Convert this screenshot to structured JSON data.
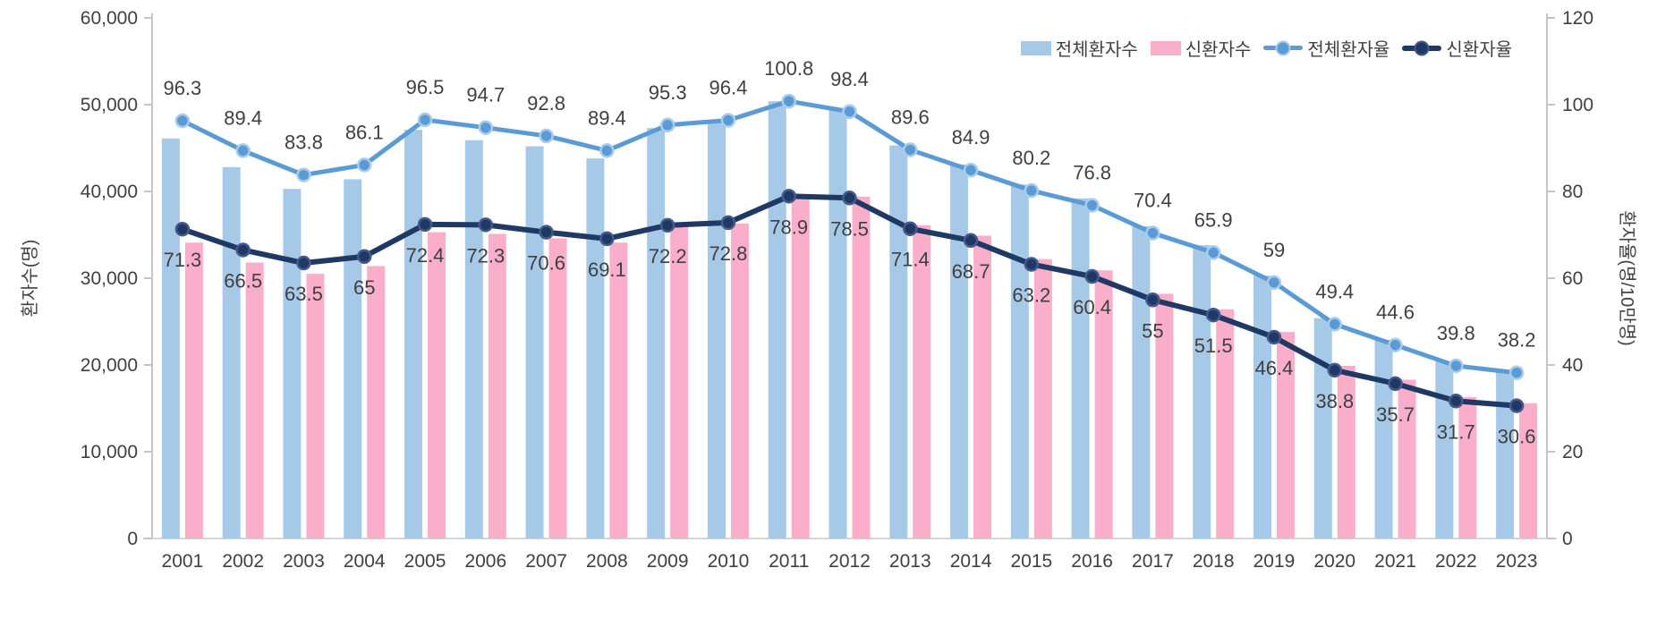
{
  "chart_data": {
    "type": "combo",
    "title": "",
    "categories": [
      "2001",
      "2002",
      "2003",
      "2004",
      "2005",
      "2006",
      "2007",
      "2008",
      "2009",
      "2010",
      "2011",
      "2012",
      "2013",
      "2014",
      "2015",
      "2016",
      "2017",
      "2018",
      "2019",
      "2020",
      "2021",
      "2022",
      "2023"
    ],
    "series": [
      {
        "name": "전체환자수",
        "type": "bar",
        "axis": "left",
        "color": "#A6C9E8",
        "values": [
          46100,
          42800,
          40300,
          41400,
          47100,
          45900,
          45200,
          43800,
          47300,
          48100,
          50400,
          49500,
          45300,
          43100,
          40800,
          39200,
          36000,
          33800,
          30300,
          25400,
          22900,
          20400,
          19400
        ]
      },
      {
        "name": "신환자수",
        "type": "bar",
        "axis": "left",
        "color": "#FAAEC9",
        "values": [
          34100,
          31800,
          30500,
          31400,
          35300,
          35100,
          34600,
          34100,
          35900,
          36300,
          39500,
          39400,
          36100,
          34900,
          32200,
          30900,
          28200,
          26400,
          23800,
          19900,
          18300,
          16300,
          15600
        ]
      },
      {
        "name": "전체환자율",
        "type": "line",
        "axis": "right",
        "color": "#5B9BD5",
        "marker_ring": "#A9CCEC",
        "label_position": "above",
        "values": [
          96.3,
          89.4,
          83.8,
          86.1,
          96.5,
          94.7,
          92.8,
          89.4,
          95.3,
          96.4,
          100.8,
          98.4,
          89.6,
          84.9,
          80.2,
          76.8,
          70.4,
          65.9,
          59,
          49.4,
          44.6,
          39.8,
          38.2
        ]
      },
      {
        "name": "신환자율",
        "type": "line",
        "axis": "right",
        "color": "#1F3864",
        "marker_ring": "#44598C",
        "label_position": "below",
        "values": [
          71.3,
          66.5,
          63.5,
          65,
          72.4,
          72.3,
          70.6,
          69.1,
          72.2,
          72.8,
          78.9,
          78.5,
          71.4,
          68.7,
          63.2,
          60.4,
          55,
          51.5,
          46.4,
          38.8,
          35.7,
          31.7,
          30.6
        ]
      }
    ],
    "left_axis": {
      "title": "환자수(명)",
      "min": 0,
      "max": 60000,
      "step": 10000,
      "tick_labels": [
        "0",
        "10,000",
        "20,000",
        "30,000",
        "40,000",
        "50,000",
        "60,000"
      ]
    },
    "right_axis": {
      "title": "환자율(명/10만명)",
      "min": 0,
      "max": 120,
      "step": 20,
      "tick_labels": [
        "0",
        "20",
        "40",
        "60",
        "80",
        "100",
        "120"
      ]
    },
    "legend_position": "top-right",
    "grid": false
  }
}
